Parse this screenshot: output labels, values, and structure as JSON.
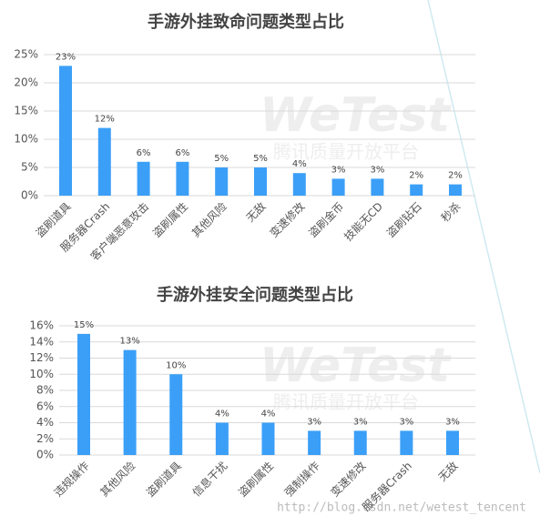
{
  "chart_data": [
    {
      "type": "bar",
      "title": "手游外挂致命问题类型占比",
      "categories": [
        "盗刷道具",
        "服务器Crash",
        "客户端恶意攻击",
        "盗刷属性",
        "其他风险",
        "无敌",
        "变速修改",
        "盗刷金币",
        "技能无CD",
        "盗刷钻石",
        "秒杀"
      ],
      "values": [
        23,
        12,
        6,
        6,
        5,
        5,
        4,
        3,
        3,
        2,
        2
      ],
      "value_labels": [
        "23%",
        "12%",
        "6%",
        "6%",
        "5%",
        "5%",
        "4%",
        "3%",
        "3%",
        "2%",
        "2%"
      ],
      "color": "#3b9ff7",
      "ylim": [
        0,
        25
      ],
      "yticks": [
        {
          "value": 0,
          "label": "0%"
        },
        {
          "value": 5,
          "label": "5%"
        },
        {
          "value": 10,
          "label": "10%"
        },
        {
          "value": 15,
          "label": "15%"
        },
        {
          "value": 20,
          "label": "20%"
        },
        {
          "value": 25,
          "label": "25%"
        }
      ],
      "grid": true
    },
    {
      "type": "bar",
      "title": "手游外挂安全问题类型占比",
      "categories": [
        "违规操作",
        "其他风险",
        "盗刷道具",
        "信息干扰",
        "盗刷属性",
        "强制操作",
        "变速修改",
        "服务器Crash",
        "无敌"
      ],
      "values": [
        15,
        13,
        10,
        4,
        4,
        3,
        3,
        3,
        3
      ],
      "value_labels": [
        "15%",
        "13%",
        "10%",
        "4%",
        "4%",
        "3%",
        "3%",
        "3%",
        "3%"
      ],
      "color": "#3b9ff7",
      "ylim": [
        0,
        16
      ],
      "yticks": [
        {
          "value": 0,
          "label": "0%"
        },
        {
          "value": 2,
          "label": "2%"
        },
        {
          "value": 4,
          "label": "4%"
        },
        {
          "value": 6,
          "label": "6%"
        },
        {
          "value": 8,
          "label": "8%"
        },
        {
          "value": 10,
          "label": "10%"
        },
        {
          "value": 12,
          "label": "12%"
        },
        {
          "value": 14,
          "label": "14%"
        },
        {
          "value": 16,
          "label": "16%"
        }
      ],
      "grid": true
    }
  ],
  "watermark": {
    "brand": "WeTest",
    "subtitle": "腾讯质量开放平台",
    "url": "http://blog.csdn.net/wetest_tencent"
  }
}
